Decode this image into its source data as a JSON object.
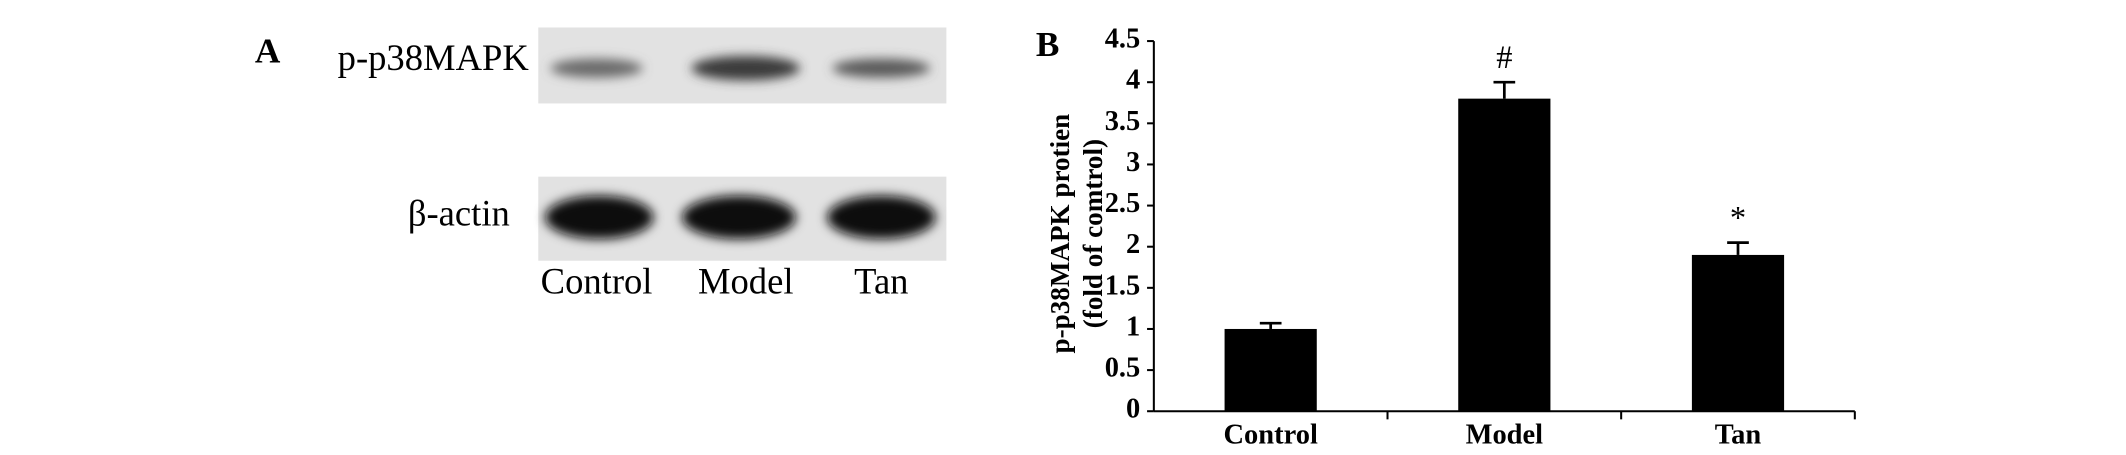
{
  "panel_a": {
    "label": "A",
    "rows": [
      "p-p38MAPK",
      "β-actin"
    ],
    "lanes": [
      "Control",
      "Model",
      "Tan"
    ]
  },
  "chart_data": {
    "type": "bar",
    "panel_label": "B",
    "y_label": [
      "p-p38MAPK protien",
      "(fold of comtrol)"
    ],
    "categories": [
      "Control",
      "Model",
      "Tan"
    ],
    "values": [
      1.0,
      3.8,
      1.9
    ],
    "errors": [
      0.07,
      0.2,
      0.15
    ],
    "annotations": [
      null,
      "#",
      "*"
    ],
    "color": "#000000",
    "ylim": [
      0,
      4.5
    ],
    "yticks": [
      0,
      0.5,
      1,
      1.5,
      2,
      2.5,
      3,
      3.5,
      4,
      4.5
    ]
  }
}
